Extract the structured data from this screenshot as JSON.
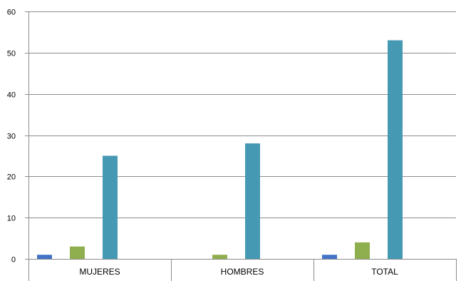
{
  "chart_data": {
    "type": "bar",
    "title": "",
    "xlabel": "",
    "ylabel": "",
    "categories": [
      "MUJERES",
      "HOMBRES",
      "TOTAL"
    ],
    "series": [
      {
        "color": "#4472C4",
        "values": [
          1,
          0,
          1
        ]
      },
      {
        "color": "#8FAE4E",
        "values": [
          3,
          1,
          4
        ]
      },
      {
        "color": "#4699B3",
        "values": [
          25,
          28,
          53
        ]
      }
    ],
    "ylim": [
      0,
      60
    ],
    "yticks": [
      "0",
      "10",
      "20",
      "30",
      "40",
      "50",
      "60"
    ],
    "grid": true,
    "legend": "none"
  }
}
